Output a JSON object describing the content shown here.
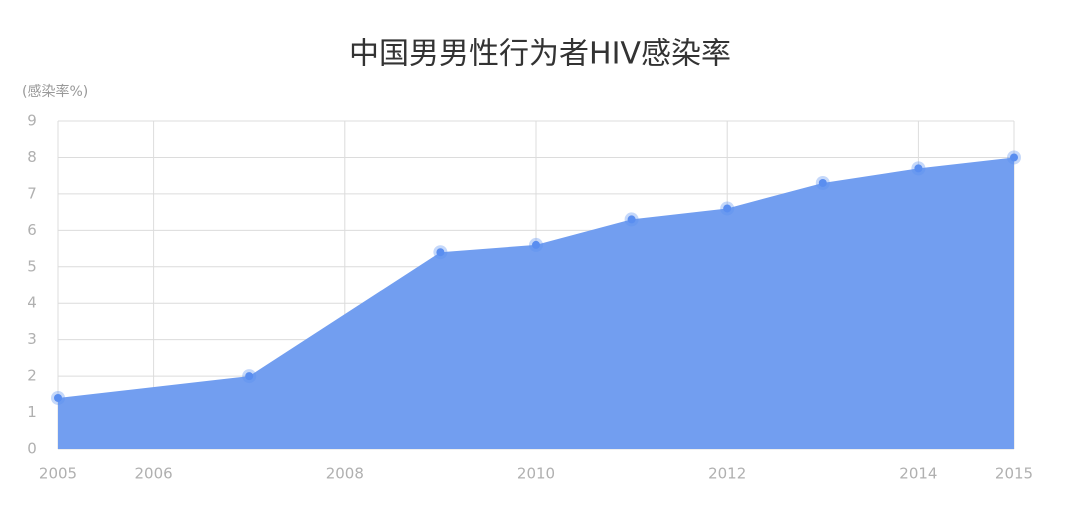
{
  "chart_data": {
    "type": "area",
    "title": "中国男男性行为者HIV感染率",
    "y_label": "(感染率%)",
    "x": [
      2005,
      2007,
      2009,
      2010,
      2011,
      2012,
      2013,
      2014,
      2015
    ],
    "values": [
      1.4,
      2.0,
      5.4,
      5.6,
      6.3,
      6.6,
      7.3,
      7.7,
      8.0
    ],
    "color": "#729ef0",
    "marker_color": "#5a8ef0",
    "xlim": [
      2005,
      2015
    ],
    "xticks": [
      2005,
      2006,
      2008,
      2010,
      2012,
      2014,
      2015
    ],
    "ylim": [
      0,
      9
    ],
    "yticks": [
      0,
      1,
      2,
      3,
      4,
      5,
      6,
      7,
      8,
      9
    ],
    "grid": true
  }
}
